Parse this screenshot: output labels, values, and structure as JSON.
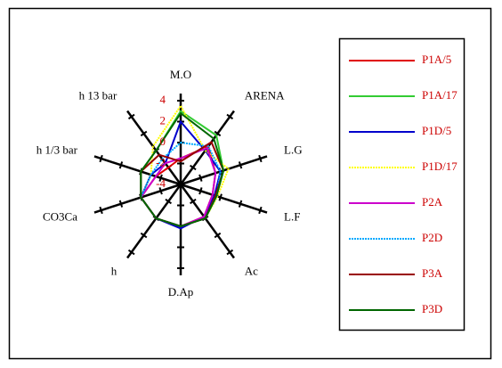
{
  "chart_data": {
    "type": "radar",
    "categories": [
      "M.O",
      "ARENA",
      "L.G",
      "L.F",
      "Ac",
      "D.Ap",
      "h",
      "CO3Ca",
      "h 1/3 bar",
      "h 13 bar"
    ],
    "rlim": [
      -4,
      4
    ],
    "rticks": [
      4,
      2,
      0,
      -2,
      -4
    ],
    "series": [
      {
        "name": "P1A/5",
        "color": "#e00000",
        "values": [
          -1.5,
          0.5,
          -0.5,
          -0.8,
          -0.2,
          0,
          0,
          0,
          -1.5,
          -2
        ]
      },
      {
        "name": "P1A/17",
        "color": "#33cc33",
        "values": [
          3,
          1.8,
          0.3,
          -0.4,
          0,
          0,
          0,
          0,
          0,
          0
        ]
      },
      {
        "name": "P1D/5",
        "color": "#0000cc",
        "values": [
          2,
          0,
          0,
          -0.6,
          -0.2,
          0.2,
          0,
          0,
          -1,
          -1.5
        ]
      },
      {
        "name": "P1D/17",
        "color": "#ffff00",
        "dotted": true,
        "values": [
          3.5,
          0,
          0.8,
          -0.3,
          0,
          0,
          0,
          0,
          -1,
          0.5
        ]
      },
      {
        "name": "P2A",
        "color": "#cc00cc",
        "values": [
          -1.5,
          0.3,
          -0.5,
          -0.8,
          -0.2,
          0,
          0,
          0,
          -1.5,
          -1.5
        ]
      },
      {
        "name": "P2D",
        "color": "#00aaff",
        "dotted": true,
        "values": [
          0,
          0.5,
          0,
          -0.4,
          0,
          0,
          0,
          0,
          -1,
          -1
        ]
      },
      {
        "name": "P3A",
        "color": "#990000",
        "values": [
          -1.8,
          1,
          0.3,
          -0.5,
          0,
          0,
          0,
          0,
          0,
          -0.5
        ]
      },
      {
        "name": "P3D",
        "color": "#006600",
        "values": [
          2.8,
          1.4,
          0.3,
          -0.4,
          0,
          0,
          0,
          0,
          0,
          0
        ]
      }
    ]
  }
}
